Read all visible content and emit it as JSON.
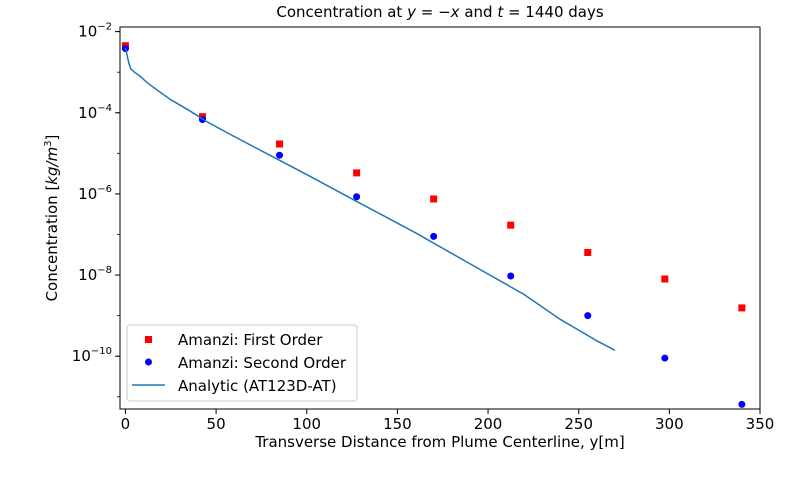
{
  "chart_data": {
    "type": "scatter",
    "title": "Concentration at y = −x and t = 1440 days",
    "title_parts": {
      "prefix": "Concentration at ",
      "y": "y",
      "eq1": " = −",
      "x": "x",
      "mid": " and ",
      "t": "t",
      "eq2": " = 1440 days"
    },
    "xlabel": "Transverse Distance from Plume Centerline, y[m]",
    "ylabel": "Concentration [kg/m³]",
    "ylabel_parts": {
      "prefix": "Concentration [",
      "unit": "kg/m",
      "exp": "3",
      "suffix": "]"
    },
    "xlim": [
      -3,
      350
    ],
    "ylim": [
      5e-12,
      0.013
    ],
    "yscale": "log",
    "grid": false,
    "legend_position": "lower-left",
    "x_ticks": [
      0,
      50,
      100,
      150,
      200,
      250,
      300,
      350
    ],
    "y_ticks": [
      {
        "value": 0.01,
        "base": "10",
        "exp": "−2"
      },
      {
        "value": 0.0001,
        "base": "10",
        "exp": "−4"
      },
      {
        "value": 1e-06,
        "base": "10",
        "exp": "−6"
      },
      {
        "value": 1e-08,
        "base": "10",
        "exp": "−8"
      },
      {
        "value": 1e-10,
        "base": "10",
        "exp": "−10"
      }
    ],
    "series": [
      {
        "name": "Amanzi: First Order",
        "kind": "scatter",
        "marker": "square",
        "color": "#ff0000",
        "x": [
          0,
          42.5,
          85,
          127.5,
          170,
          212.5,
          255,
          297.5,
          340
        ],
        "y": [
          0.0045,
          8e-05,
          1.7e-05,
          3.3e-06,
          7.5e-07,
          1.7e-07,
          3.6e-08,
          8e-09,
          1.55e-09
        ]
      },
      {
        "name": "Amanzi: Second Order",
        "kind": "scatter",
        "marker": "circle",
        "color": "#0000ff",
        "x": [
          0,
          42.5,
          85,
          127.5,
          170,
          212.5,
          255,
          297.5,
          340
        ],
        "y": [
          0.0038,
          6.8e-05,
          9e-06,
          8.5e-07,
          9e-08,
          9.5e-09,
          1e-09,
          9e-11,
          6.5e-12
        ]
      },
      {
        "name": "Analytic (AT123D-AT)",
        "kind": "line",
        "color": "#1f77b4",
        "x": [
          0,
          1,
          2,
          3,
          5,
          8,
          12,
          18,
          25,
          35,
          45,
          60,
          80,
          100,
          130,
          160,
          190,
          220,
          240,
          250,
          260,
          270
        ],
        "y": [
          0.004,
          0.0025,
          0.0016,
          0.0012,
          0.001,
          0.0008,
          0.00055,
          0.00035,
          0.00021,
          0.000115,
          6e-05,
          2.6e-05,
          8.8e-06,
          3e-06,
          5.7e-07,
          1.1e-07,
          1.9e-08,
          3.3e-09,
          8e-10,
          4.4e-10,
          2.4e-10,
          1.4e-10
        ]
      }
    ]
  }
}
